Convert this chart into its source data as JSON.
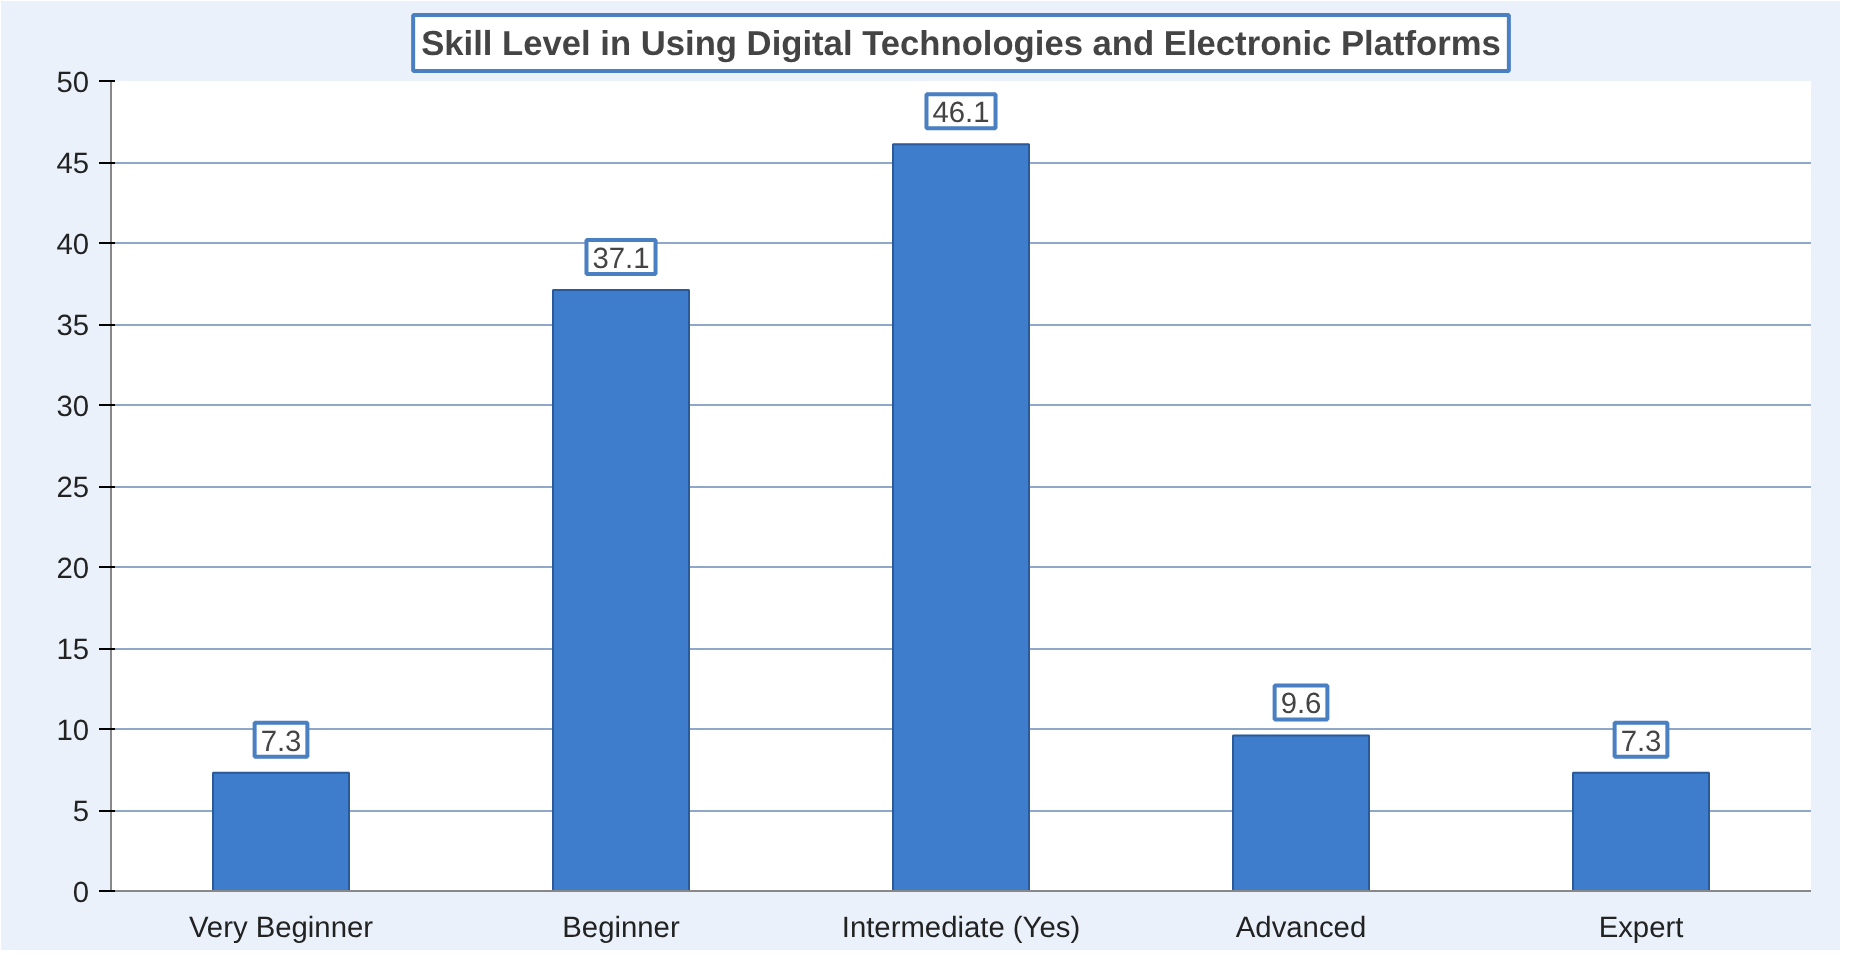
{
  "chart_data": {
    "type": "bar",
    "title": "Skill Level in Using Digital Technologies and Electronic Platforms",
    "categories": [
      "Very Beginner",
      "Beginner",
      "Intermediate (Yes)",
      "Advanced",
      "Expert"
    ],
    "values": [
      7.3,
      37.1,
      46.1,
      9.6,
      7.3
    ],
    "color": "#3d7dcc",
    "ylim": [
      0,
      50
    ],
    "yticks": [
      0,
      5,
      10,
      15,
      20,
      25,
      30,
      35,
      40,
      45,
      50
    ],
    "grid": "y",
    "data_labels": true
  }
}
